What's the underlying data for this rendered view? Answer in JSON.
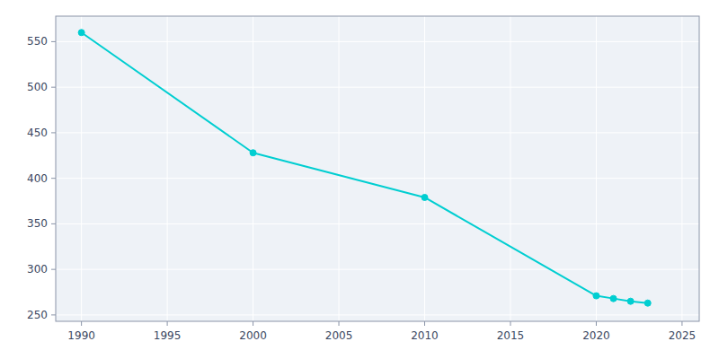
{
  "chart_data": {
    "type": "line",
    "x": [
      1990,
      2000,
      2010,
      2020,
      2021,
      2022,
      2023
    ],
    "values": [
      560,
      428,
      379,
      271,
      268,
      265,
      263
    ],
    "color": "#00CED1",
    "marker": "circle",
    "xlim": [
      1988.5,
      2026
    ],
    "ylim": [
      243,
      578
    ],
    "xticks": [
      1990,
      1995,
      2000,
      2005,
      2010,
      2015,
      2020,
      2025
    ],
    "yticks": [
      250,
      300,
      350,
      400,
      450,
      500,
      550
    ],
    "grid": true
  }
}
